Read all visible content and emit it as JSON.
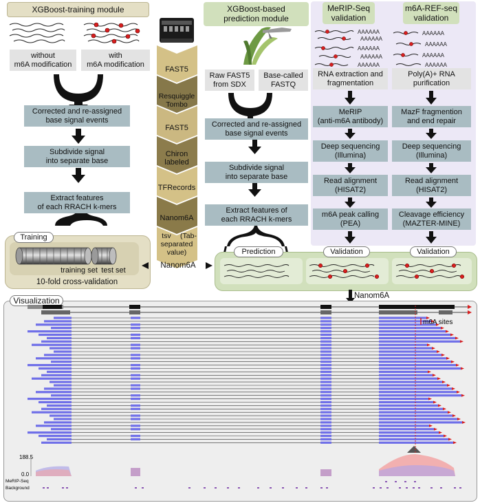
{
  "training_module": {
    "title": "XGBoost-training module",
    "without_label": "without",
    "without_label_2": "m6A modification",
    "with_label": "with",
    "with_label_2": "m6A modification",
    "step1": "Corrected and re-assigned",
    "step1b": "base signal events",
    "step2": "Subdivide signal",
    "step2b": "into separate base",
    "step3": "Extract features",
    "step3b": "of each RRACH k-mers",
    "training_tag": "Training",
    "training_set": "training set",
    "test_set": "test set",
    "cv_label": "10-fold cross-validation"
  },
  "pipeline": {
    "stages": [
      "FAST5",
      "Resquiggle",
      "Tombo",
      "FAST5",
      "Chiron",
      "labeled",
      "TFRecords",
      "Nanom6A",
      "tsv",
      "(Tab-",
      "separated",
      "value)"
    ],
    "nanom6a_left": "Nanom6A",
    "nanom6a_right": "Nanom6A"
  },
  "prediction_module": {
    "title": "XGBoost-based",
    "title2": "prediction module",
    "raw": "Raw FAST5",
    "raw2": "from SDX",
    "base": "Base-called",
    "base2": "FASTQ",
    "step1": "Corrected and re-assigned",
    "step1b": "base signal events",
    "step2": "Subdivide signal",
    "step2b": "into separate base",
    "step3": "Extract features of",
    "step3b": "each RRACH k-mers",
    "prediction_tag": "Prediction",
    "validation_tag_1": "Validation",
    "validation_tag_2": "Validation"
  },
  "merip": {
    "title": "MeRIP-Seq",
    "title2": "validation",
    "s1": "RNA extraction and",
    "s1b": "fragmentation",
    "s2": "MeRIP",
    "s2b": "(anti-m6A antibody)",
    "s3": "Deep sequencing",
    "s3b": "(Illumina)",
    "s4": "Read alignment",
    "s4b": "(HISAT2)",
    "s5": "m6A peak calling",
    "s5b": "(PEA)",
    "poly": "AAAAAA"
  },
  "refseq": {
    "title": "m6A-REF-seq",
    "title2": "validation",
    "s1": "Poly(A)+ RNA",
    "s1b": "purification",
    "s2": "MazF fragmention",
    "s2b": "and end repair",
    "s3": "Deep sequencing",
    "s3b": "(Illumina)",
    "s4": "Read alignment",
    "s4b": "(HISAT2)",
    "s5": "Cleavage efficiency",
    "s5b": "(MAZTER-MINE)"
  },
  "visualization": {
    "tag": "Visualization",
    "legend": "m6A sites",
    "scale_max": "188.5",
    "scale_min": "0.0",
    "track1": "MeRIP-Seq",
    "track2": "Background"
  },
  "colors": {
    "tan_bg": "#e4dfc5",
    "tan_border": "#bcb591",
    "green_bg": "#d1e0bc",
    "lavender_bg": "#ece8f6",
    "step_box": "#a9bcc2",
    "read_blue": "#6f6fe8",
    "m6a_red": "#d81e1e"
  }
}
